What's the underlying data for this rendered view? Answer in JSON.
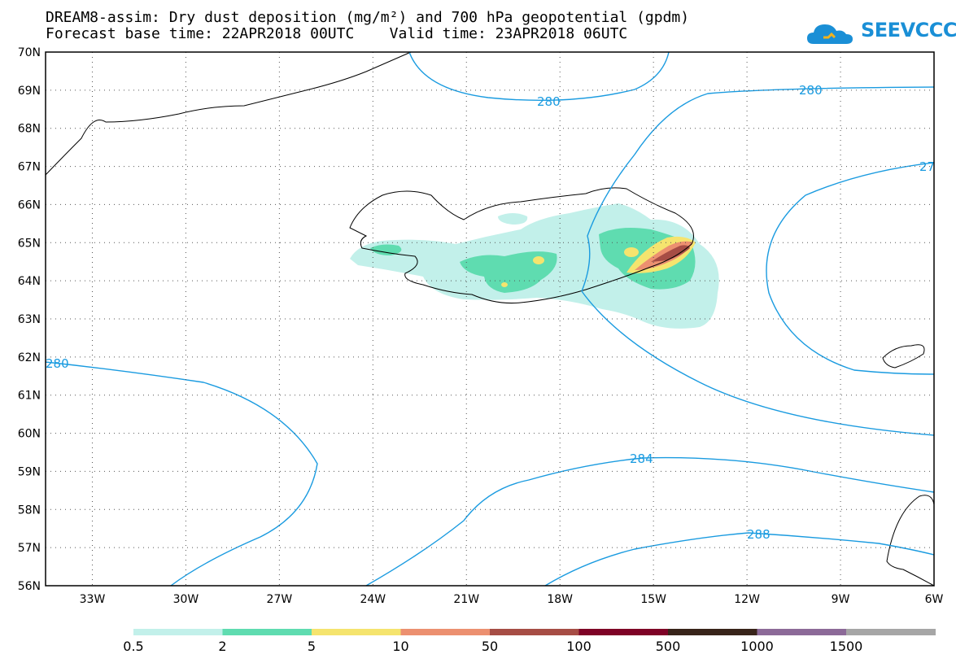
{
  "title": {
    "line1": "DREAM8-assim: Dry dust deposition (mg/m²) and 700 hPa geopotential (gpdm)",
    "line2": "Forecast base time: 22APR2018 00UTC    Valid time: 23APR2018 06UTC"
  },
  "logo": {
    "text": "SEEVCCC",
    "color": "#1a8fd6"
  },
  "axes": {
    "lat_labels": [
      "70N",
      "69N",
      "68N",
      "67N",
      "66N",
      "65N",
      "64N",
      "63N",
      "62N",
      "61N",
      "60N",
      "59N",
      "58N",
      "57N",
      "56N"
    ],
    "lon_labels": [
      "33W",
      "30W",
      "27W",
      "24W",
      "21W",
      "18W",
      "15W",
      "12W",
      "9W",
      "6W"
    ],
    "lat_range": [
      56,
      70
    ],
    "lon_range": [
      -34.5,
      -6
    ],
    "grid": "dotted"
  },
  "contours": {
    "color": "#1a9be0",
    "labels": [
      "280",
      "280",
      "280",
      "27",
      "284",
      "288"
    ]
  },
  "colorbar": {
    "labels": [
      "0.5",
      "2",
      "5",
      "10",
      "50",
      "100",
      "500",
      "1000",
      "1500"
    ],
    "colors": [
      "#c2f0ea",
      "#5fdcb0",
      "#f5e46e",
      "#ec9070",
      "#a64d45",
      "#7e0226",
      "#38241a",
      "#8c6a98",
      "#a6a6a6"
    ]
  }
}
